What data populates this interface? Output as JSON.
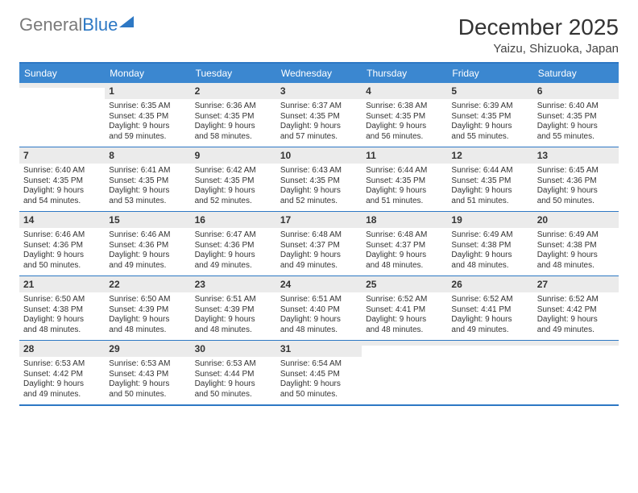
{
  "logo": {
    "part1": "General",
    "part2": "Blue"
  },
  "title": "December 2025",
  "location": "Yaizu, Shizuoka, Japan",
  "colors": {
    "header_bg": "#3b87d0",
    "header_text": "#ffffff",
    "border": "#2d78c4",
    "daynum_bg": "#ebebeb",
    "text": "#333333"
  },
  "dayNames": [
    "Sunday",
    "Monday",
    "Tuesday",
    "Wednesday",
    "Thursday",
    "Friday",
    "Saturday"
  ],
  "weeks": [
    [
      {
        "n": "",
        "sr": "",
        "ss": "",
        "dl1": "",
        "dl2": ""
      },
      {
        "n": "1",
        "sr": "Sunrise: 6:35 AM",
        "ss": "Sunset: 4:35 PM",
        "dl1": "Daylight: 9 hours",
        "dl2": "and 59 minutes."
      },
      {
        "n": "2",
        "sr": "Sunrise: 6:36 AM",
        "ss": "Sunset: 4:35 PM",
        "dl1": "Daylight: 9 hours",
        "dl2": "and 58 minutes."
      },
      {
        "n": "3",
        "sr": "Sunrise: 6:37 AM",
        "ss": "Sunset: 4:35 PM",
        "dl1": "Daylight: 9 hours",
        "dl2": "and 57 minutes."
      },
      {
        "n": "4",
        "sr": "Sunrise: 6:38 AM",
        "ss": "Sunset: 4:35 PM",
        "dl1": "Daylight: 9 hours",
        "dl2": "and 56 minutes."
      },
      {
        "n": "5",
        "sr": "Sunrise: 6:39 AM",
        "ss": "Sunset: 4:35 PM",
        "dl1": "Daylight: 9 hours",
        "dl2": "and 55 minutes."
      },
      {
        "n": "6",
        "sr": "Sunrise: 6:40 AM",
        "ss": "Sunset: 4:35 PM",
        "dl1": "Daylight: 9 hours",
        "dl2": "and 55 minutes."
      }
    ],
    [
      {
        "n": "7",
        "sr": "Sunrise: 6:40 AM",
        "ss": "Sunset: 4:35 PM",
        "dl1": "Daylight: 9 hours",
        "dl2": "and 54 minutes."
      },
      {
        "n": "8",
        "sr": "Sunrise: 6:41 AM",
        "ss": "Sunset: 4:35 PM",
        "dl1": "Daylight: 9 hours",
        "dl2": "and 53 minutes."
      },
      {
        "n": "9",
        "sr": "Sunrise: 6:42 AM",
        "ss": "Sunset: 4:35 PM",
        "dl1": "Daylight: 9 hours",
        "dl2": "and 52 minutes."
      },
      {
        "n": "10",
        "sr": "Sunrise: 6:43 AM",
        "ss": "Sunset: 4:35 PM",
        "dl1": "Daylight: 9 hours",
        "dl2": "and 52 minutes."
      },
      {
        "n": "11",
        "sr": "Sunrise: 6:44 AM",
        "ss": "Sunset: 4:35 PM",
        "dl1": "Daylight: 9 hours",
        "dl2": "and 51 minutes."
      },
      {
        "n": "12",
        "sr": "Sunrise: 6:44 AM",
        "ss": "Sunset: 4:35 PM",
        "dl1": "Daylight: 9 hours",
        "dl2": "and 51 minutes."
      },
      {
        "n": "13",
        "sr": "Sunrise: 6:45 AM",
        "ss": "Sunset: 4:36 PM",
        "dl1": "Daylight: 9 hours",
        "dl2": "and 50 minutes."
      }
    ],
    [
      {
        "n": "14",
        "sr": "Sunrise: 6:46 AM",
        "ss": "Sunset: 4:36 PM",
        "dl1": "Daylight: 9 hours",
        "dl2": "and 50 minutes."
      },
      {
        "n": "15",
        "sr": "Sunrise: 6:46 AM",
        "ss": "Sunset: 4:36 PM",
        "dl1": "Daylight: 9 hours",
        "dl2": "and 49 minutes."
      },
      {
        "n": "16",
        "sr": "Sunrise: 6:47 AM",
        "ss": "Sunset: 4:36 PM",
        "dl1": "Daylight: 9 hours",
        "dl2": "and 49 minutes."
      },
      {
        "n": "17",
        "sr": "Sunrise: 6:48 AM",
        "ss": "Sunset: 4:37 PM",
        "dl1": "Daylight: 9 hours",
        "dl2": "and 49 minutes."
      },
      {
        "n": "18",
        "sr": "Sunrise: 6:48 AM",
        "ss": "Sunset: 4:37 PM",
        "dl1": "Daylight: 9 hours",
        "dl2": "and 48 minutes."
      },
      {
        "n": "19",
        "sr": "Sunrise: 6:49 AM",
        "ss": "Sunset: 4:38 PM",
        "dl1": "Daylight: 9 hours",
        "dl2": "and 48 minutes."
      },
      {
        "n": "20",
        "sr": "Sunrise: 6:49 AM",
        "ss": "Sunset: 4:38 PM",
        "dl1": "Daylight: 9 hours",
        "dl2": "and 48 minutes."
      }
    ],
    [
      {
        "n": "21",
        "sr": "Sunrise: 6:50 AM",
        "ss": "Sunset: 4:38 PM",
        "dl1": "Daylight: 9 hours",
        "dl2": "and 48 minutes."
      },
      {
        "n": "22",
        "sr": "Sunrise: 6:50 AM",
        "ss": "Sunset: 4:39 PM",
        "dl1": "Daylight: 9 hours",
        "dl2": "and 48 minutes."
      },
      {
        "n": "23",
        "sr": "Sunrise: 6:51 AM",
        "ss": "Sunset: 4:39 PM",
        "dl1": "Daylight: 9 hours",
        "dl2": "and 48 minutes."
      },
      {
        "n": "24",
        "sr": "Sunrise: 6:51 AM",
        "ss": "Sunset: 4:40 PM",
        "dl1": "Daylight: 9 hours",
        "dl2": "and 48 minutes."
      },
      {
        "n": "25",
        "sr": "Sunrise: 6:52 AM",
        "ss": "Sunset: 4:41 PM",
        "dl1": "Daylight: 9 hours",
        "dl2": "and 48 minutes."
      },
      {
        "n": "26",
        "sr": "Sunrise: 6:52 AM",
        "ss": "Sunset: 4:41 PM",
        "dl1": "Daylight: 9 hours",
        "dl2": "and 49 minutes."
      },
      {
        "n": "27",
        "sr": "Sunrise: 6:52 AM",
        "ss": "Sunset: 4:42 PM",
        "dl1": "Daylight: 9 hours",
        "dl2": "and 49 minutes."
      }
    ],
    [
      {
        "n": "28",
        "sr": "Sunrise: 6:53 AM",
        "ss": "Sunset: 4:42 PM",
        "dl1": "Daylight: 9 hours",
        "dl2": "and 49 minutes."
      },
      {
        "n": "29",
        "sr": "Sunrise: 6:53 AM",
        "ss": "Sunset: 4:43 PM",
        "dl1": "Daylight: 9 hours",
        "dl2": "and 50 minutes."
      },
      {
        "n": "30",
        "sr": "Sunrise: 6:53 AM",
        "ss": "Sunset: 4:44 PM",
        "dl1": "Daylight: 9 hours",
        "dl2": "and 50 minutes."
      },
      {
        "n": "31",
        "sr": "Sunrise: 6:54 AM",
        "ss": "Sunset: 4:45 PM",
        "dl1": "Daylight: 9 hours",
        "dl2": "and 50 minutes."
      },
      {
        "n": "",
        "sr": "",
        "ss": "",
        "dl1": "",
        "dl2": ""
      },
      {
        "n": "",
        "sr": "",
        "ss": "",
        "dl1": "",
        "dl2": ""
      },
      {
        "n": "",
        "sr": "",
        "ss": "",
        "dl1": "",
        "dl2": ""
      }
    ]
  ]
}
